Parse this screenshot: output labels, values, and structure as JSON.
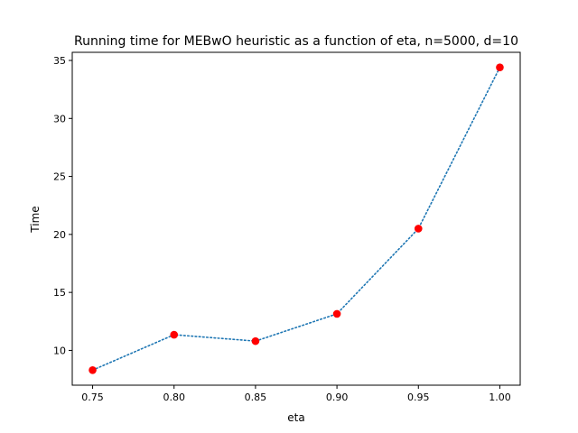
{
  "chart_data": {
    "type": "line",
    "title": "Running time for MEBwO heuristic as a function of eta, n=5000, d=10",
    "xlabel": "eta",
    "ylabel": "Time",
    "x": [
      0.75,
      0.8,
      0.85,
      0.9,
      0.95,
      1.0
    ],
    "series": [
      {
        "values": [
          8.3,
          11.35,
          10.8,
          13.15,
          20.5,
          34.4
        ],
        "line_color": "#1f77b4",
        "line_style": "dotted",
        "marker_color": "#ff0000",
        "marker": "circle"
      }
    ],
    "xlim": [
      0.7375,
      1.0125
    ],
    "ylim": [
      7.0,
      35.7
    ],
    "xticks": [
      "0.75",
      "0.80",
      "0.85",
      "0.90",
      "0.95",
      "1.00"
    ],
    "yticks": [
      "10",
      "15",
      "20",
      "25",
      "30",
      "35"
    ],
    "grid": false,
    "legend": "none"
  }
}
